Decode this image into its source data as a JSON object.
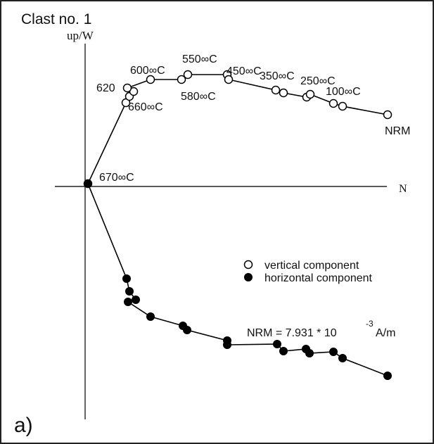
{
  "figure": {
    "title": "Clast no. 1",
    "panel_label": "a)",
    "axis_y_label": "up/W",
    "axis_x_label": "N",
    "legend": {
      "vertical": "vertical component",
      "horizontal": "horizontal component"
    },
    "nrm_text": {
      "prefix": "NRM = 7.931 * 10",
      "exponent": "-3",
      "unit": "A/m"
    }
  },
  "chart_data": {
    "type": "scatter",
    "title": "Clast no. 1",
    "xlabel": "N",
    "ylabel": "up/W",
    "grid": false,
    "legend_position": "middle-right",
    "series": [
      {
        "name": "vertical component",
        "marker": "open-circle",
        "color": "#000000",
        "points": [
          [
            0.0,
            0.0
          ],
          [
            0.54,
            1.15
          ],
          [
            0.59,
            1.24
          ],
          [
            0.65,
            1.31
          ],
          [
            0.56,
            1.36
          ],
          [
            0.89,
            1.48
          ],
          [
            1.33,
            1.48
          ],
          [
            1.42,
            1.55
          ],
          [
            1.98,
            1.55
          ],
          [
            2.0,
            1.48
          ],
          [
            2.67,
            1.33
          ],
          [
            2.78,
            1.29
          ],
          [
            3.11,
            1.23
          ],
          [
            3.16,
            1.27
          ],
          [
            3.49,
            1.14
          ],
          [
            3.62,
            1.1
          ],
          [
            4.26,
            0.98
          ]
        ]
      },
      {
        "name": "horizontal component",
        "marker": "filled-circle",
        "color": "#000000",
        "points": [
          [
            0.0,
            0.0
          ],
          [
            0.55,
            -1.35
          ],
          [
            0.59,
            -1.53
          ],
          [
            0.68,
            -1.65
          ],
          [
            0.57,
            -1.68
          ],
          [
            0.89,
            -1.89
          ],
          [
            1.35,
            -2.02
          ],
          [
            1.41,
            -2.08
          ],
          [
            1.98,
            -2.23
          ],
          [
            1.98,
            -2.29
          ],
          [
            2.69,
            -2.28
          ],
          [
            2.78,
            -2.38
          ],
          [
            3.1,
            -2.35
          ],
          [
            3.15,
            -2.41
          ],
          [
            3.49,
            -2.39
          ],
          [
            3.62,
            -2.48
          ],
          [
            4.26,
            -2.73
          ]
        ]
      }
    ],
    "annotations": [
      {
        "text": "NRM",
        "x": 4.26,
        "y": 0.98
      },
      {
        "text": "100∞C",
        "x": 3.62,
        "y": 1.1
      },
      {
        "text": "250∞C",
        "x": 3.16,
        "y": 1.27
      },
      {
        "text": "350∞C",
        "x": 2.67,
        "y": 1.33
      },
      {
        "text": "450∞C",
        "x": 2.0,
        "y": 1.48
      },
      {
        "text": "550∞C",
        "x": 1.42,
        "y": 1.55
      },
      {
        "text": "580∞C",
        "x": 1.33,
        "y": 1.48
      },
      {
        "text": "600∞C",
        "x": 0.89,
        "y": 1.48
      },
      {
        "text": "620",
        "x": 0.56,
        "y": 1.36
      },
      {
        "text": "660∞C",
        "x": 0.65,
        "y": 1.31
      },
      {
        "text": "670∞C",
        "x": 0.0,
        "y": 0.0
      }
    ]
  }
}
